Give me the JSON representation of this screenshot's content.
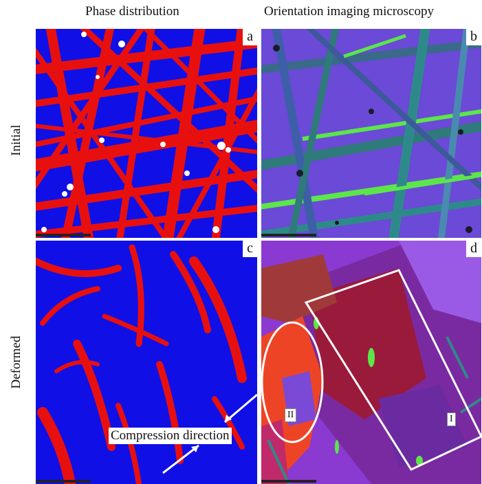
{
  "columns": {
    "left_title": "Phase distribution",
    "right_title": "Orientation imaging microscopy"
  },
  "rows": {
    "top_label": "Initial",
    "bottom_label": "Deformed"
  },
  "panels": {
    "a": {
      "tag": "a"
    },
    "b": {
      "tag": "b"
    },
    "c": {
      "tag": "c",
      "annotation": "Compression direction"
    },
    "d": {
      "tag": "d",
      "region_I": "I",
      "region_II": "II"
    }
  },
  "colors": {
    "phase_blue": "#1010e6",
    "phase_red": "#e8100e",
    "oim_violet": "#6a4ad6",
    "oim_green": "#5ce64a",
    "oim_maroon": "#9a1a3c",
    "oim_orange_red": "#ee4426"
  }
}
